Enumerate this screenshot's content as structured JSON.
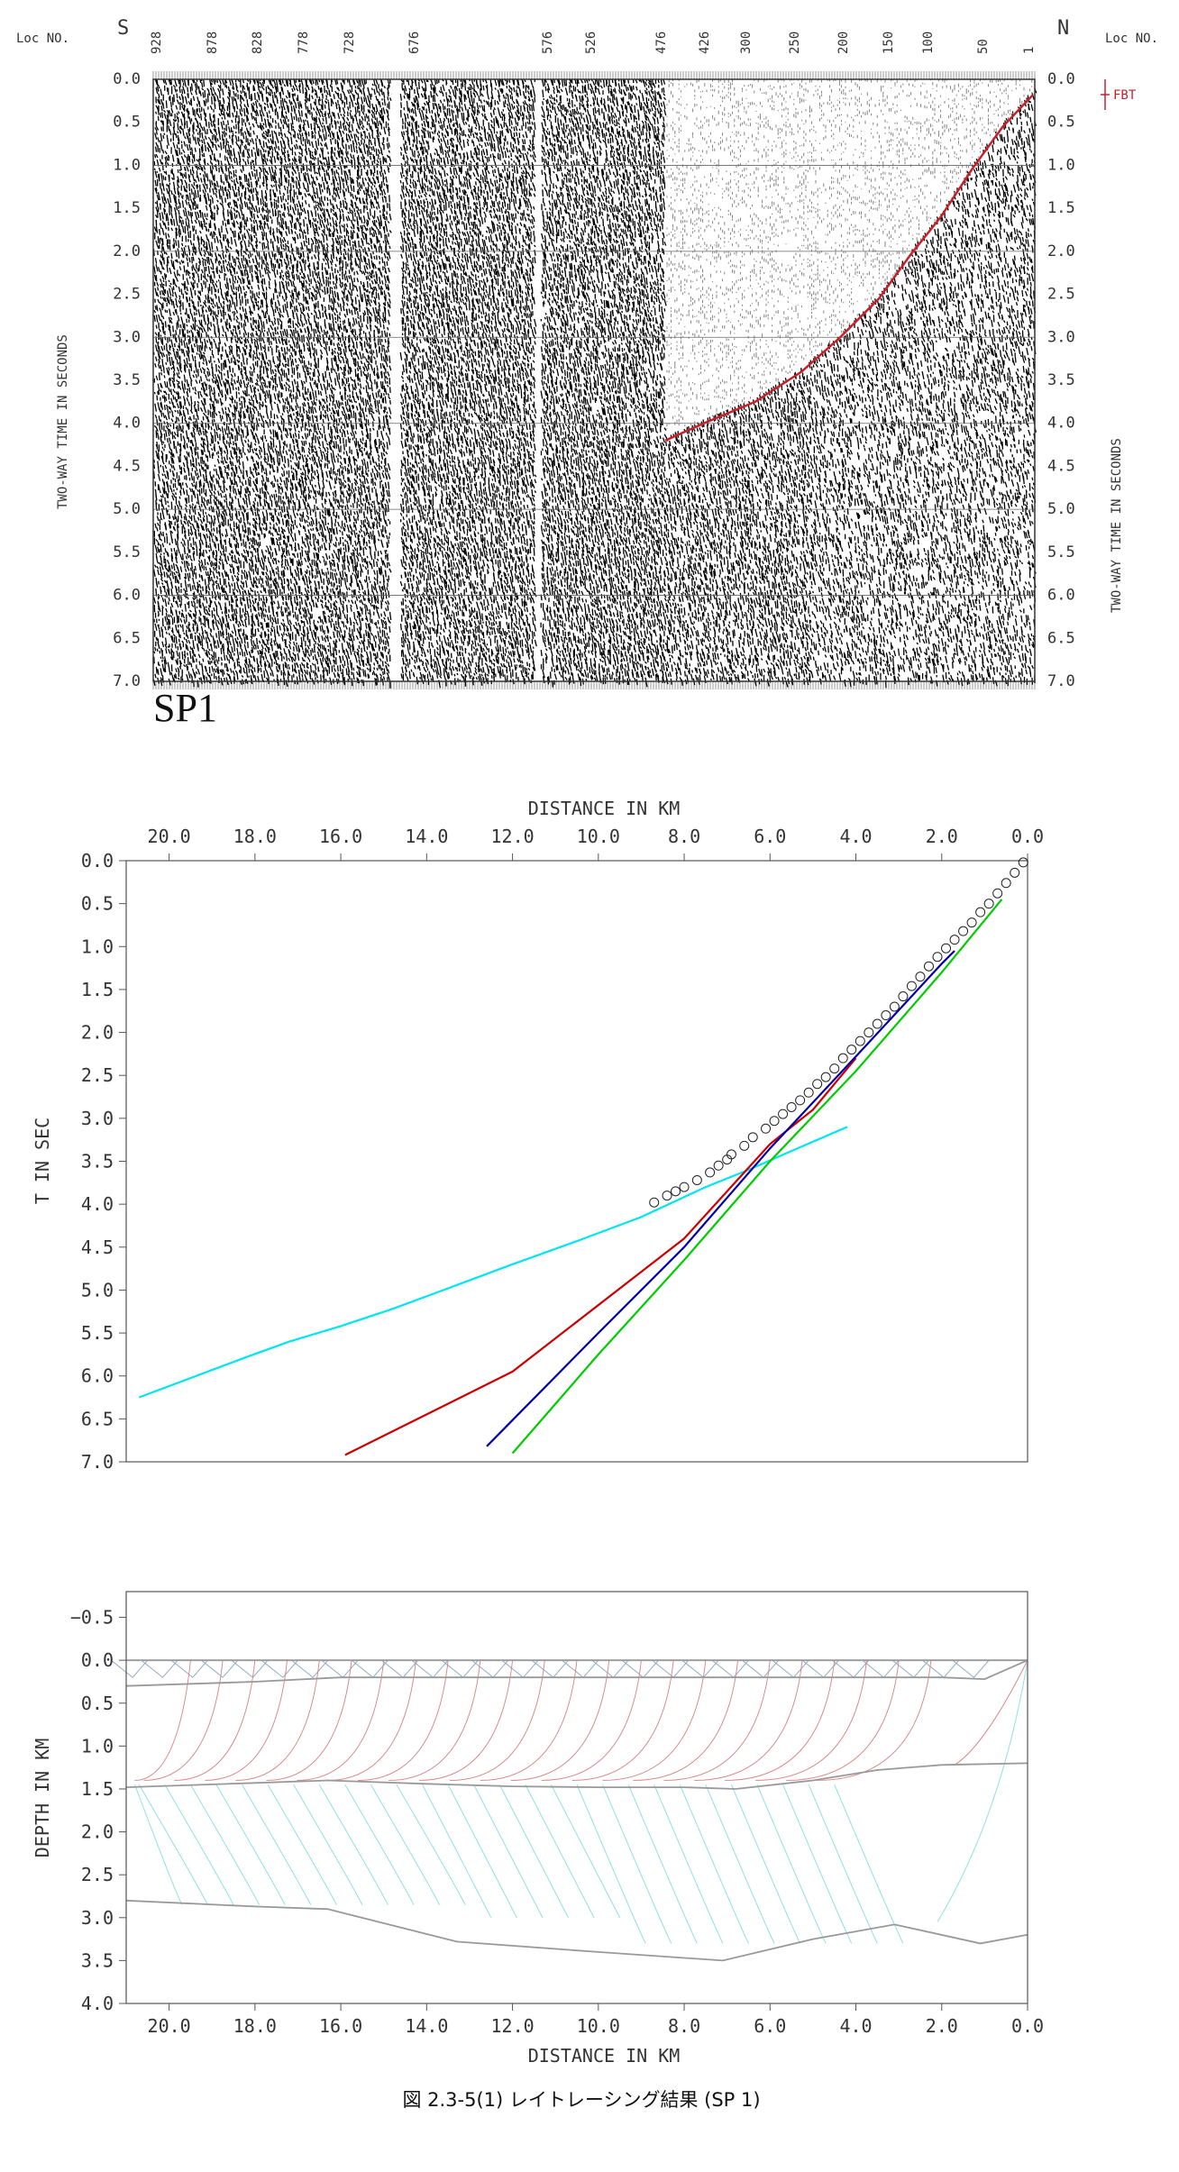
{
  "caption": "図 2.3-5(1) レイトレーシング結果 (SP 1)",
  "chart_data": [
    {
      "type": "heatmap",
      "subtype": "seismic record section",
      "shot_label": "SP1",
      "loc_label": "Loc NO.",
      "left_direction": "S",
      "right_direction": "N",
      "loc_ticks": [
        "928",
        "878",
        "828",
        "778",
        "728",
        "676",
        "576",
        "526",
        "476",
        "426",
        "300",
        "250",
        "200",
        "150",
        "100",
        "50",
        "1"
      ],
      "ylabel": "TWO-WAY TIME IN SECONDS",
      "y_ticks": [
        "0.0",
        "0.5",
        "1.0",
        "1.5",
        "2.0",
        "2.5",
        "3.0",
        "3.5",
        "4.0",
        "4.5",
        "5.0",
        "5.5",
        "6.0",
        "6.5",
        "7.0"
      ],
      "ylim": [
        0,
        7
      ],
      "legend": [
        {
          "name": "FBT",
          "color": "#c8202a"
        }
      ],
      "first_break_pick": {
        "color": "#c8202a",
        "x": [
          1,
          40,
          80,
          120,
          160,
          200,
          250,
          300,
          360,
          426,
          476
        ],
        "y": [
          0.18,
          0.55,
          1.05,
          1.6,
          2.05,
          2.55,
          3.0,
          3.4,
          3.75,
          4.0,
          4.2
        ]
      }
    },
    {
      "type": "line",
      "subtype": "travel-time curves",
      "xlabel": "DISTANCE IN KM",
      "ylabel": "T IN SEC",
      "x_ticks": [
        "20.0",
        "18.0",
        "16.0",
        "14.0",
        "12.0",
        "10.0",
        "8.0",
        "6.0",
        "4.0",
        "2.0",
        "0.0"
      ],
      "y_ticks": [
        "0.0",
        "0.5",
        "1.0",
        "1.5",
        "2.0",
        "2.5",
        "3.0",
        "3.5",
        "4.0",
        "4.5",
        "5.0",
        "5.5",
        "6.0",
        "6.5",
        "7.0"
      ],
      "xlim": [
        21,
        0
      ],
      "ylim": [
        0,
        7
      ],
      "series": [
        {
          "color": "#00e5ee",
          "x": [
            20.7,
            18.2,
            17.2,
            16.0,
            14.8,
            13.5,
            12.0,
            10.5,
            9.0,
            7.5,
            6.5,
            5.5,
            4.2
          ],
          "y": [
            6.25,
            5.78,
            5.6,
            5.42,
            5.22,
            4.98,
            4.7,
            4.43,
            4.15,
            3.8,
            3.6,
            3.38,
            3.1
          ]
        },
        {
          "color": "#cc0000",
          "x": [
            15.9,
            12.0,
            8.0,
            6.0,
            5.0,
            4.0
          ],
          "y": [
            6.92,
            5.95,
            4.4,
            3.3,
            2.9,
            2.3
          ]
        },
        {
          "color": "#0000aa",
          "x": [
            12.6,
            10.0,
            8.0,
            6.0,
            4.0,
            2.0,
            1.7
          ],
          "y": [
            6.82,
            5.5,
            4.5,
            3.35,
            2.28,
            1.2,
            1.05
          ]
        },
        {
          "color": "#00cc00",
          "x": [
            12.0,
            10.0,
            8.0,
            6.0,
            4.0,
            2.0,
            0.6
          ],
          "y": [
            6.9,
            5.75,
            4.65,
            3.5,
            2.45,
            1.3,
            0.45
          ]
        }
      ],
      "observed": {
        "marker": "circle",
        "x": [
          8.7,
          8.4,
          8.2,
          8.0,
          7.7,
          7.4,
          7.2,
          7.0,
          6.9,
          6.6,
          6.4,
          6.1,
          5.9,
          5.7,
          5.5,
          5.3,
          5.1,
          4.9,
          4.7,
          4.5,
          4.3,
          4.1,
          3.9,
          3.7,
          3.5,
          3.3,
          3.1,
          2.9,
          2.7,
          2.5,
          2.3,
          2.1,
          1.9,
          1.7,
          1.5,
          1.3,
          1.1,
          0.9,
          0.7,
          0.5,
          0.3,
          0.1
        ],
        "y": [
          3.98,
          3.9,
          3.85,
          3.8,
          3.72,
          3.63,
          3.55,
          3.48,
          3.42,
          3.32,
          3.22,
          3.12,
          3.03,
          2.95,
          2.87,
          2.79,
          2.7,
          2.6,
          2.52,
          2.42,
          2.3,
          2.2,
          2.1,
          2.0,
          1.9,
          1.8,
          1.7,
          1.58,
          1.46,
          1.35,
          1.23,
          1.12,
          1.02,
          0.92,
          0.82,
          0.72,
          0.6,
          0.5,
          0.38,
          0.26,
          0.14,
          0.02
        ]
      }
    },
    {
      "type": "line",
      "subtype": "ray-tracing depth model",
      "xlabel": "DISTANCE IN KM",
      "ylabel": "DEPTH IN KM",
      "x_ticks": [
        "20.0",
        "18.0",
        "16.0",
        "14.0",
        "12.0",
        "10.0",
        "8.0",
        "6.0",
        "4.0",
        "2.0",
        "0.0"
      ],
      "y_ticks": [
        "−0.5",
        "0.0",
        "0.5",
        "1.0",
        "1.5",
        "2.0",
        "2.5",
        "3.0",
        "3.5",
        "4.0"
      ],
      "xlim": [
        21,
        0
      ],
      "ylim": [
        -0.8,
        4.0
      ],
      "layer_color": "#999999",
      "ray_colors": {
        "shallow": "#8fa8c0",
        "refracted": "#d98080",
        "deep": "#8ee0e4"
      },
      "layers": [
        {
          "x": [
            21,
            0
          ],
          "y": [
            0.0,
            0.0
          ]
        },
        {
          "x": [
            21,
            18,
            16,
            14,
            12,
            10,
            8,
            6,
            4,
            2,
            1,
            0
          ],
          "y": [
            0.3,
            0.25,
            0.2,
            0.2,
            0.2,
            0.2,
            0.2,
            0.2,
            0.2,
            0.2,
            0.22,
            0.0
          ]
        },
        {
          "x": [
            21,
            18,
            16.3,
            14,
            12,
            10,
            8,
            6.8,
            5,
            3.5,
            2,
            0
          ],
          "y": [
            1.48,
            1.43,
            1.4,
            1.44,
            1.47,
            1.48,
            1.48,
            1.5,
            1.4,
            1.28,
            1.22,
            1.2
          ]
        },
        {
          "x": [
            21,
            18,
            16.3,
            13.3,
            10,
            7.1,
            5,
            3.1,
            1.1,
            0
          ],
          "y": [
            2.8,
            2.87,
            2.9,
            3.28,
            3.4,
            3.5,
            3.25,
            3.08,
            3.3,
            3.2
          ]
        }
      ]
    }
  ]
}
